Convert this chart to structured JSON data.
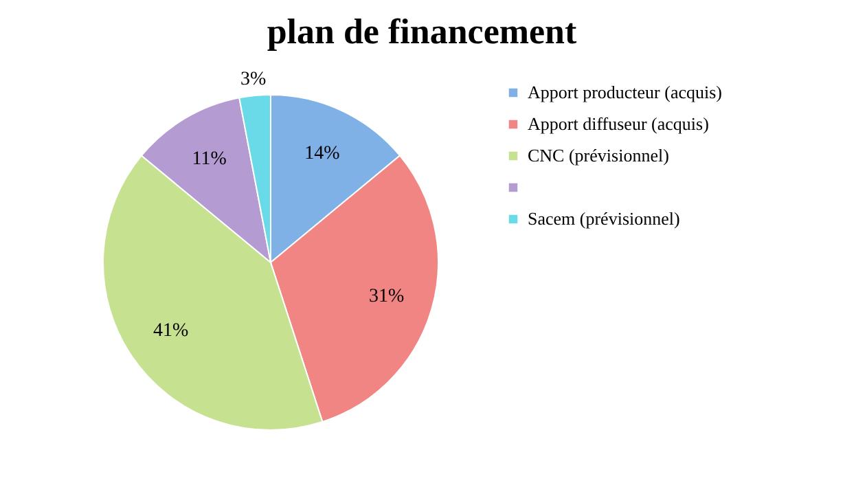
{
  "chart_data": {
    "type": "pie",
    "title": "plan de financement",
    "categories": [
      "Apport producteur (acquis)",
      "Apport diffuseur (acquis)",
      "CNC (prévisionnel)",
      null,
      "Sacem (prévisionnel)"
    ],
    "values": [
      14,
      31,
      41,
      11,
      3
    ],
    "colors": [
      "#7fb0e6",
      "#f08583",
      "#c6e291",
      "#b49cd2",
      "#6ad9e8"
    ],
    "value_labels": [
      "14%",
      "31%",
      "41%",
      "11%",
      "3%"
    ],
    "legend": "right"
  }
}
